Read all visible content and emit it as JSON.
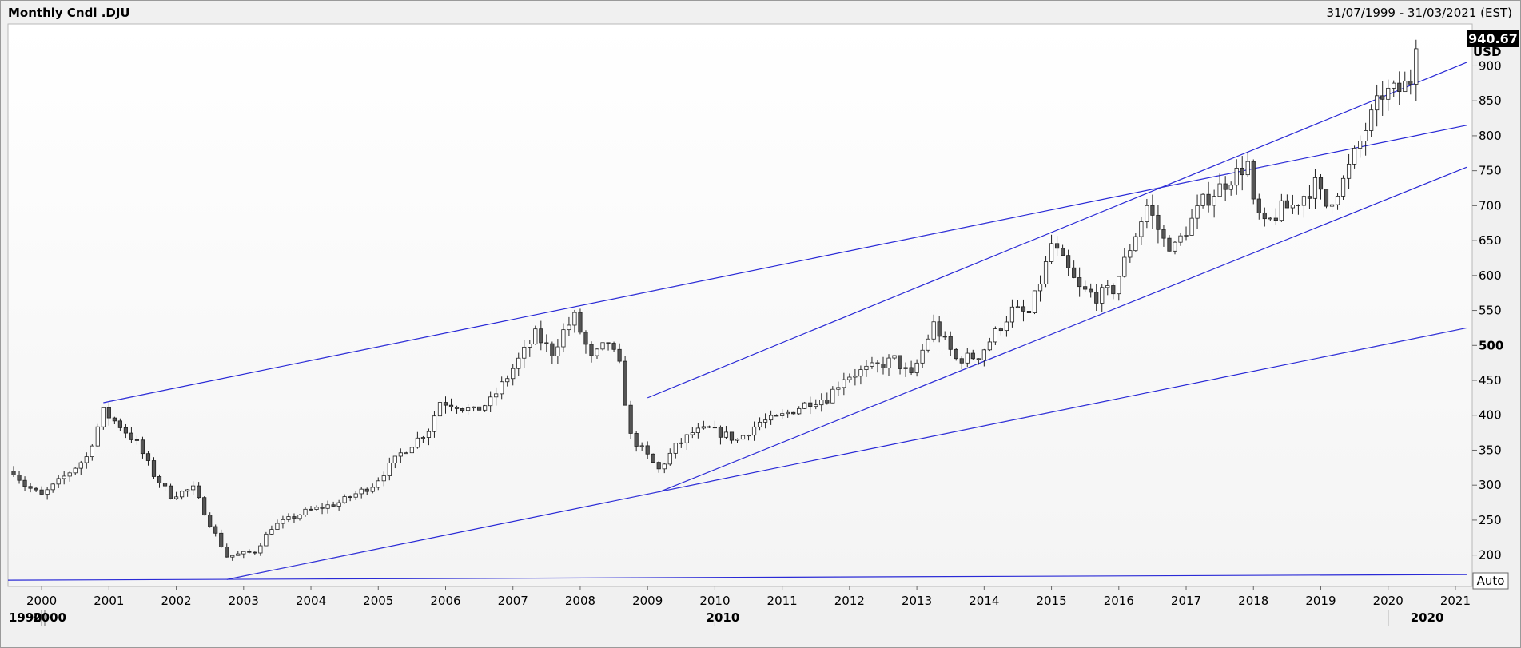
{
  "header": {
    "title": "Monthly Cndl .DJU",
    "date_range": "31/07/1999 - 31/03/2021 (EST)"
  },
  "chart_data": {
    "type": "candlestick",
    "currency": "USD",
    "last_price": "940.67",
    "scale_mode": "Auto",
    "ylim": [
      155,
      960
    ],
    "y_ticks": [
      200,
      250,
      300,
      350,
      400,
      450,
      500,
      550,
      600,
      650,
      700,
      750,
      800,
      850,
      900
    ],
    "x_year_labels": [
      "2000",
      "2001",
      "2002",
      "2003",
      "2004",
      "2005",
      "2006",
      "2007",
      "2008",
      "2009",
      "2010",
      "2011",
      "2012",
      "2013",
      "2014",
      "2015",
      "2016",
      "2017",
      "2018",
      "2019",
      "2020",
      "2021"
    ],
    "x_decade_labels": [
      "1990",
      "2000",
      "2010",
      "2020"
    ],
    "grid": false,
    "colors": {
      "up_candle": "#ffffff",
      "down_candle": "#555555",
      "candle_outline": "#222222",
      "trendline": "#2a2ad6",
      "last_price_badge": "#000000"
    },
    "anchors": [
      [
        "1999-08",
        320
      ],
      [
        "1999-10",
        300
      ],
      [
        "2000-01",
        285
      ],
      [
        "2000-04",
        305
      ],
      [
        "2000-09",
        340
      ],
      [
        "2000-12",
        405
      ],
      [
        "2001-03",
        385
      ],
      [
        "2001-06",
        360
      ],
      [
        "2001-09",
        315
      ],
      [
        "2001-12",
        285
      ],
      [
        "2002-04",
        295
      ],
      [
        "2002-07",
        245
      ],
      [
        "2002-10",
        198
      ],
      [
        "2003-03",
        205
      ],
      [
        "2003-06",
        240
      ],
      [
        "2003-12",
        262
      ],
      [
        "2004-06",
        275
      ],
      [
        "2004-12",
        300
      ],
      [
        "2005-05",
        345
      ],
      [
        "2005-10",
        380
      ],
      [
        "2005-12",
        420
      ],
      [
        "2006-03",
        415
      ],
      [
        "2006-06",
        405
      ],
      [
        "2006-09",
        420
      ],
      [
        "2006-12",
        455
      ],
      [
        "2007-05",
        515
      ],
      [
        "2007-08",
        490
      ],
      [
        "2007-10",
        520
      ],
      [
        "2007-12",
        540
      ],
      [
        "2008-03",
        480
      ],
      [
        "2008-06",
        505
      ],
      [
        "2008-08",
        470
      ],
      [
        "2008-10",
        370
      ],
      [
        "2009-03",
        322
      ],
      [
        "2009-06",
        355
      ],
      [
        "2009-09",
        375
      ],
      [
        "2009-12",
        380
      ],
      [
        "2010-05",
        365
      ],
      [
        "2010-09",
        390
      ],
      [
        "2010-12",
        395
      ],
      [
        "2011-06",
        420
      ],
      [
        "2011-09",
        425
      ],
      [
        "2011-12",
        455
      ],
      [
        "2012-06",
        470
      ],
      [
        "2012-09",
        480
      ],
      [
        "2012-12",
        455
      ],
      [
        "2013-04",
        530
      ],
      [
        "2013-08",
        480
      ],
      [
        "2013-12",
        485
      ],
      [
        "2014-06",
        550
      ],
      [
        "2014-09",
        545
      ],
      [
        "2014-12",
        615
      ],
      [
        "2015-01",
        645
      ],
      [
        "2015-06",
        580
      ],
      [
        "2015-09",
        570
      ],
      [
        "2015-12",
        580
      ],
      [
        "2016-06",
        700
      ],
      [
        "2016-09",
        650
      ],
      [
        "2016-11",
        640
      ],
      [
        "2017-04",
        705
      ],
      [
        "2017-09",
        740
      ],
      [
        "2017-12",
        760
      ],
      [
        "2018-01",
        700
      ],
      [
        "2018-03",
        670
      ],
      [
        "2018-06",
        695
      ],
      [
        "2018-08",
        700
      ],
      [
        "2018-12",
        730
      ],
      [
        "2019-02",
        700
      ],
      [
        "2019-05",
        735
      ],
      [
        "2019-09",
        810
      ],
      [
        "2019-12",
        860
      ],
      [
        "2020-03",
        865
      ],
      [
        "2020-05",
        880
      ],
      [
        "2020-06",
        940
      ]
    ],
    "trendlines": [
      {
        "from": [
          "1999-07",
          164
        ],
        "to": [
          "2021-03",
          172
        ]
      },
      {
        "from": [
          "2002-10",
          165
        ],
        "to": [
          "2021-03",
          525
        ]
      },
      {
        "from": [
          "2000-12",
          418
        ],
        "to": [
          "2021-03",
          815
        ]
      },
      {
        "from": [
          "2009-03",
          290
        ],
        "to": [
          "2021-03",
          755
        ]
      },
      {
        "from": [
          "2009-01",
          425
        ],
        "to": [
          "2021-03",
          905
        ]
      }
    ]
  }
}
